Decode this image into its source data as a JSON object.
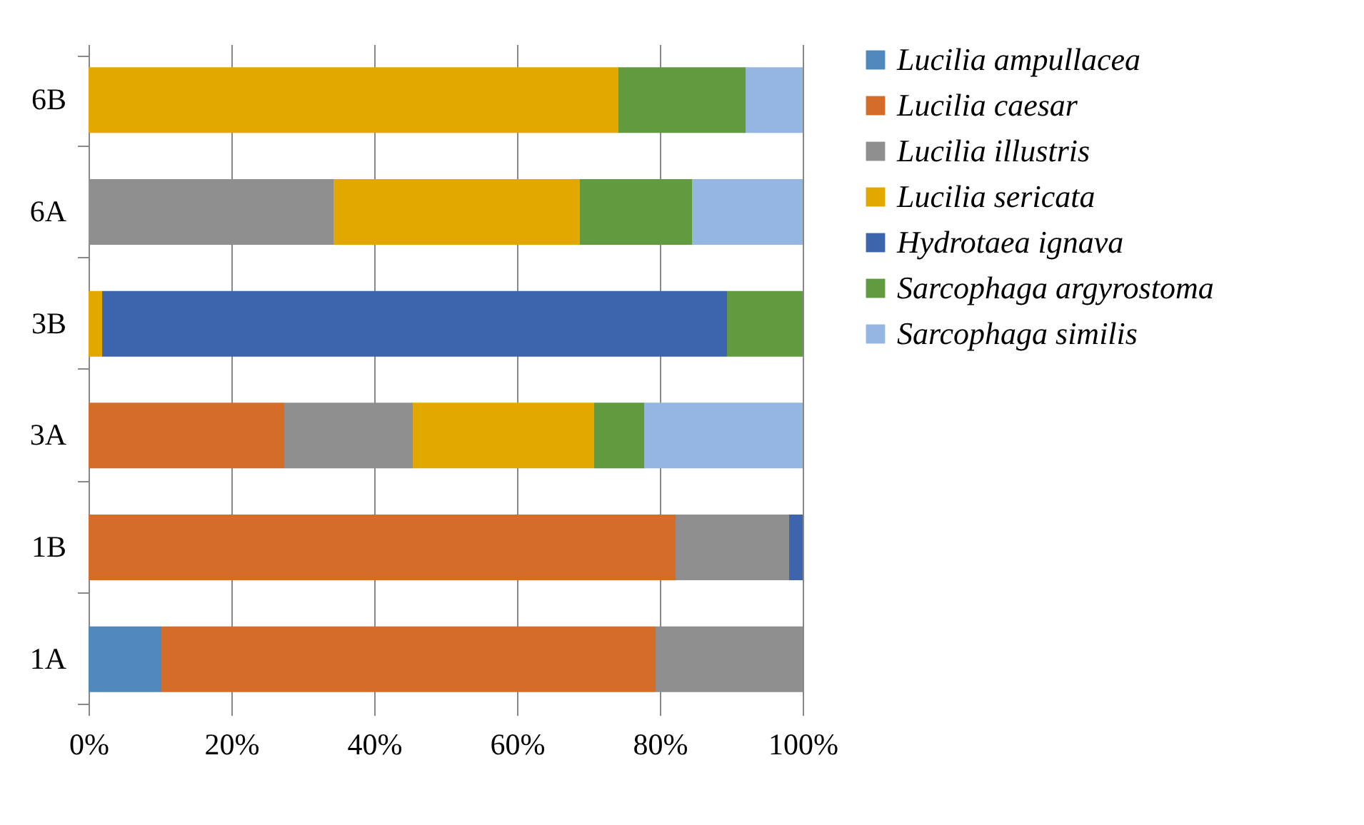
{
  "chart_data": {
    "type": "bar",
    "orientation": "horizontal",
    "stacked": true,
    "categories": [
      "6B",
      "6A",
      "3B",
      "3A",
      "1B",
      "1A"
    ],
    "series": [
      {
        "name": "Lucilia ampullacea",
        "color": "#4f88bd",
        "values": [
          null,
          null,
          null,
          null,
          null,
          10.2
        ]
      },
      {
        "name": "Lucilia caesar",
        "color": "#d46d29",
        "values": [
          null,
          null,
          null,
          27.4,
          82.2,
          69.2
        ]
      },
      {
        "name": "Lucilia illustris",
        "color": "#8f8f8f",
        "values": [
          null,
          34.3,
          null,
          18.0,
          15.9,
          20.6
        ]
      },
      {
        "name": "Lucilia sericata",
        "color": "#e2a800",
        "values": [
          74.2,
          34.5,
          1.9,
          25.4,
          null,
          null
        ]
      },
      {
        "name": "Hydrotaea ignava",
        "color": "#3c65ae",
        "values": [
          null,
          null,
          87.5,
          null,
          1.9,
          null
        ]
      },
      {
        "name": "Sarcophaga argyrostoma",
        "color": "#629b3f",
        "values": [
          17.8,
          15.7,
          10.6,
          7.0,
          null,
          null
        ]
      },
      {
        "name": "Sarcophaga similis",
        "color": "#95b6e0",
        "values": [
          8.0,
          15.5,
          null,
          22.2,
          null,
          null
        ]
      }
    ],
    "xlim": [
      0,
      100
    ],
    "xticks": [
      {
        "value": 0,
        "label": "0%"
      },
      {
        "value": 20,
        "label": "20%"
      },
      {
        "value": 40,
        "label": "40%"
      },
      {
        "value": 60,
        "label": "60%"
      },
      {
        "value": 80,
        "label": "80%"
      },
      {
        "value": 100,
        "label": "100%"
      }
    ],
    "grid": "x",
    "legend": "right"
  }
}
